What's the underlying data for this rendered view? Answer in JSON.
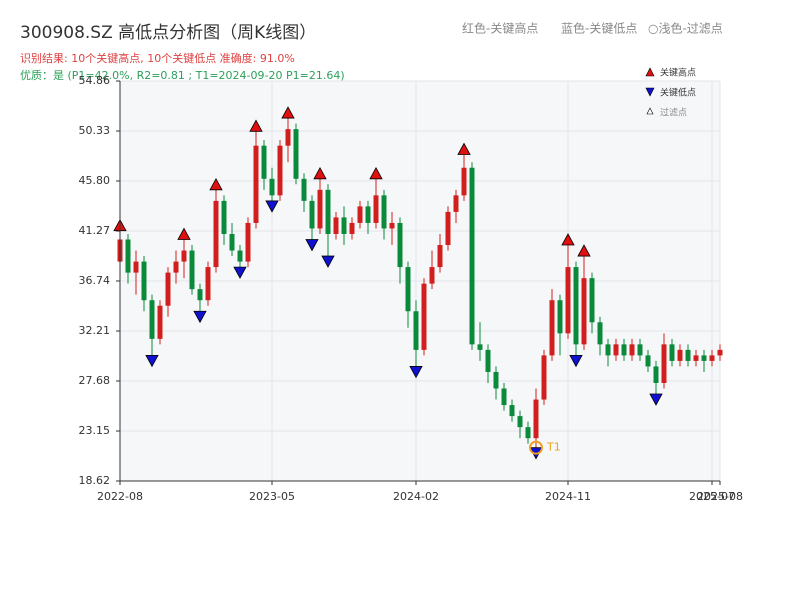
{
  "chart_data": {
    "type": "candlestick",
    "title": "300908.SZ 高低点分析图（周K线图）",
    "subtitle": "识别结果: 10个关键高点, 10个关键低点   准确度: 91.0%",
    "quality": "优质：是  (P1=42.0%, R2=0.81 ; T1=2024-09-20 P1=21.64)",
    "header_legend": [
      "红色-关键高点",
      "蓝色-关键低点",
      "○浅色-过滤点"
    ],
    "legend": [
      "关键高点",
      "关键低点",
      "过滤点"
    ],
    "annotation": "T1",
    "up_color": "#d11f1f",
    "down_color": "#0a8a3a",
    "high_color": "#e01010",
    "low_color": "#1010d0",
    "categories": [
      "2022-08",
      null,
      null,
      null,
      null,
      null,
      null,
      null,
      null,
      null,
      null,
      null,
      null,
      null,
      null,
      null,
      null,
      null,
      null,
      "2023-05",
      null,
      null,
      null,
      null,
      null,
      null,
      null,
      null,
      null,
      null,
      null,
      null,
      null,
      null,
      null,
      null,
      null,
      "2024-02",
      null,
      null,
      null,
      null,
      null,
      null,
      null,
      null,
      null,
      null,
      null,
      null,
      null,
      null,
      null,
      null,
      null,
      null,
      "2024-11",
      null,
      null,
      null,
      null,
      null,
      null,
      null,
      null,
      null,
      null,
      null,
      null,
      null,
      null,
      null,
      null,
      null,
      "2025-07",
      "2025-08"
    ],
    "open": [
      38.5,
      40.5,
      37.5,
      38.5,
      35,
      31.5,
      34.5,
      37.5,
      38.5,
      39.5,
      36,
      35,
      38,
      44,
      41,
      39.5,
      38.5,
      42,
      49,
      46,
      44.5,
      49,
      50.5,
      46,
      44,
      41.5,
      45,
      41,
      42.5,
      41,
      42,
      43.5,
      42,
      44.5,
      41.5,
      42,
      38,
      34,
      30.5,
      36.5,
      38,
      40,
      43,
      44.5,
      47,
      31,
      30.5,
      28.5,
      27,
      25.5,
      24.5,
      23.5,
      22.5,
      26,
      30,
      35,
      32,
      38,
      31,
      37,
      33,
      31,
      30,
      31,
      30,
      31,
      30,
      29,
      27.5,
      31,
      29.5,
      30.5,
      29.5,
      30,
      29.5,
      30
    ],
    "high": [
      41.3,
      41,
      39.5,
      39,
      35.5,
      35,
      38,
      39.5,
      40.5,
      40,
      36.5,
      38.5,
      45,
      44.5,
      42,
      40,
      42.5,
      50.3,
      49.5,
      47,
      49.5,
      51.5,
      51,
      46.5,
      44.5,
      46,
      45.5,
      43,
      43.5,
      42.5,
      44,
      44,
      46,
      45,
      43,
      42.5,
      38.5,
      35,
      37,
      39.5,
      41,
      43.5,
      45,
      48.2,
      47.5,
      33,
      31,
      29,
      27.5,
      26,
      25,
      24,
      27,
      30.5,
      36,
      35.5,
      40,
      38.5,
      39,
      37.5,
      33.5,
      31.5,
      31.5,
      31.5,
      31.5,
      31.5,
      30.5,
      29.5,
      32,
      31.5,
      31,
      31,
      30.5,
      30.5,
      30.5,
      31
    ],
    "low": [
      37.5,
      36.5,
      35.5,
      34,
      30,
      31,
      33.5,
      36.5,
      37,
      35.5,
      34,
      34.5,
      37.5,
      40,
      39,
      38,
      38,
      41.5,
      45,
      44,
      44,
      47.5,
      45.5,
      43,
      40.5,
      41,
      39,
      40.5,
      40,
      40.5,
      41.5,
      41,
      41.5,
      40.5,
      40,
      36.5,
      32.5,
      29,
      30,
      36,
      37.5,
      39.5,
      42,
      44,
      30.5,
      29.5,
      27.5,
      26,
      25,
      24,
      22.5,
      22,
      21.64,
      25.5,
      29.5,
      30,
      31.5,
      30,
      30.5,
      32,
      30,
      29,
      29.5,
      29.5,
      29.5,
      29.5,
      28.5,
      26.5,
      27,
      29,
      29,
      29,
      29,
      28.5,
      29,
      29.5
    ],
    "close": [
      40.5,
      37.5,
      38.5,
      35,
      31.5,
      34.5,
      37.5,
      38.5,
      39.5,
      36,
      35,
      38,
      44,
      41,
      39.5,
      38.5,
      42,
      49,
      46,
      44.5,
      49,
      50.5,
      46,
      44,
      41.5,
      45,
      41,
      42.5,
      41,
      42,
      43.5,
      42,
      44.5,
      41.5,
      42,
      38,
      34,
      30.5,
      36.5,
      38,
      40,
      43,
      44.5,
      47,
      31,
      30.5,
      28.5,
      27,
      25.5,
      24.5,
      23.5,
      22.5,
      26,
      30,
      35,
      32,
      38,
      31,
      37,
      33,
      31,
      30,
      31,
      30,
      31,
      30,
      29,
      27.5,
      31,
      29.5,
      30.5,
      29.5,
      30,
      29.5,
      30,
      30.5
    ],
    "key_highs": {
      "x": [
        0,
        8,
        12,
        17,
        21,
        25,
        32,
        43,
        56,
        58
      ],
      "values": [
        41.3,
        40.5,
        45,
        50.3,
        51.5,
        46,
        46,
        48.2,
        40,
        39
      ]
    },
    "key_lows": {
      "x": [
        4,
        10,
        15,
        19,
        24,
        26,
        37,
        52,
        57,
        67
      ],
      "values": [
        30,
        34,
        38,
        44,
        40.5,
        39,
        29,
        21.64,
        30,
        26.5
      ]
    },
    "ylim": [
      18.62,
      54.86
    ],
    "yticks": [
      18.62,
      23.15,
      27.68,
      32.21,
      36.74,
      41.27,
      {
        "value": 45.8,
        "label": "45.80"
      },
      50.33,
      54.86
    ],
    "grid": true
  }
}
